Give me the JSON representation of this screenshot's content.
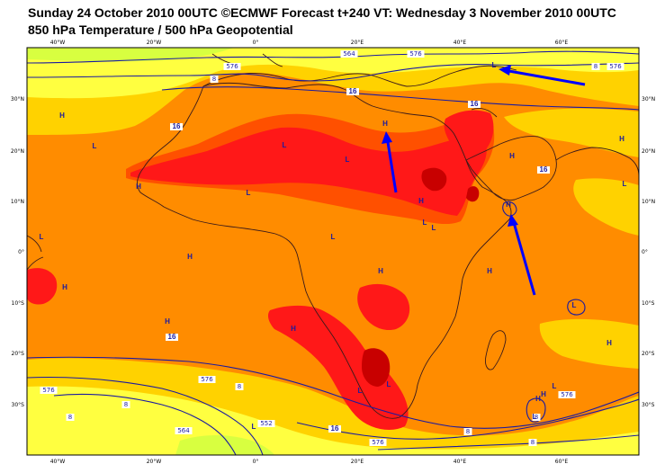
{
  "title": {
    "line1": "Sunday 24 October 2010 00UTC ©ECMWF Forecast t+240 VT: Wednesday 3 November 2010 00UTC",
    "line2": "850 hPa Temperature / 500 hPa Geopotential"
  },
  "colors": {
    "background_land": "#ff8c00",
    "cool": "#ffd200",
    "cold": "#ffff40",
    "coldest": "#d8ff40",
    "warm": "#ff5000",
    "hot": "#ff1818",
    "hottest": "#c80000",
    "contour": "#1a1aa0",
    "coast": "#3a1a1a",
    "arrow": "#0000ff"
  },
  "axes": {
    "lon_labels": [
      "40°W",
      "20°W",
      "0°",
      "20°E",
      "40°E",
      "60°E"
    ],
    "lat_labels": [
      "30°N",
      "20°N",
      "10°N",
      "0°",
      "10°S",
      "20°S",
      "30°S"
    ]
  },
  "contour_labels": [
    "8",
    "576",
    "564",
    "576",
    "8",
    "576",
    "16",
    "16",
    "16",
    "16",
    "16",
    "576",
    "8",
    "8",
    "576",
    "8",
    "564",
    "552",
    "16",
    "576",
    "8",
    "8",
    "576",
    "8"
  ],
  "pressure_centres": [
    {
      "label": "L"
    },
    {
      "label": "H"
    },
    {
      "label": "L"
    },
    {
      "label": "H"
    },
    {
      "label": "L"
    },
    {
      "label": "H"
    },
    {
      "label": "L"
    },
    {
      "label": "H"
    },
    {
      "label": "L"
    },
    {
      "label": "H"
    },
    {
      "label": "L"
    },
    {
      "label": "H"
    },
    {
      "label": "L"
    },
    {
      "label": "H"
    },
    {
      "label": "L"
    },
    {
      "label": "H"
    },
    {
      "label": "H"
    },
    {
      "label": "H"
    },
    {
      "label": "L"
    },
    {
      "label": "H"
    },
    {
      "label": "H"
    },
    {
      "label": "L"
    },
    {
      "label": "H"
    },
    {
      "label": "L"
    },
    {
      "label": "L"
    },
    {
      "label": "H"
    },
    {
      "label": "L"
    },
    {
      "label": "L"
    },
    {
      "label": "L"
    },
    {
      "label": "H"
    },
    {
      "label": "L"
    },
    {
      "label": "H"
    }
  ]
}
